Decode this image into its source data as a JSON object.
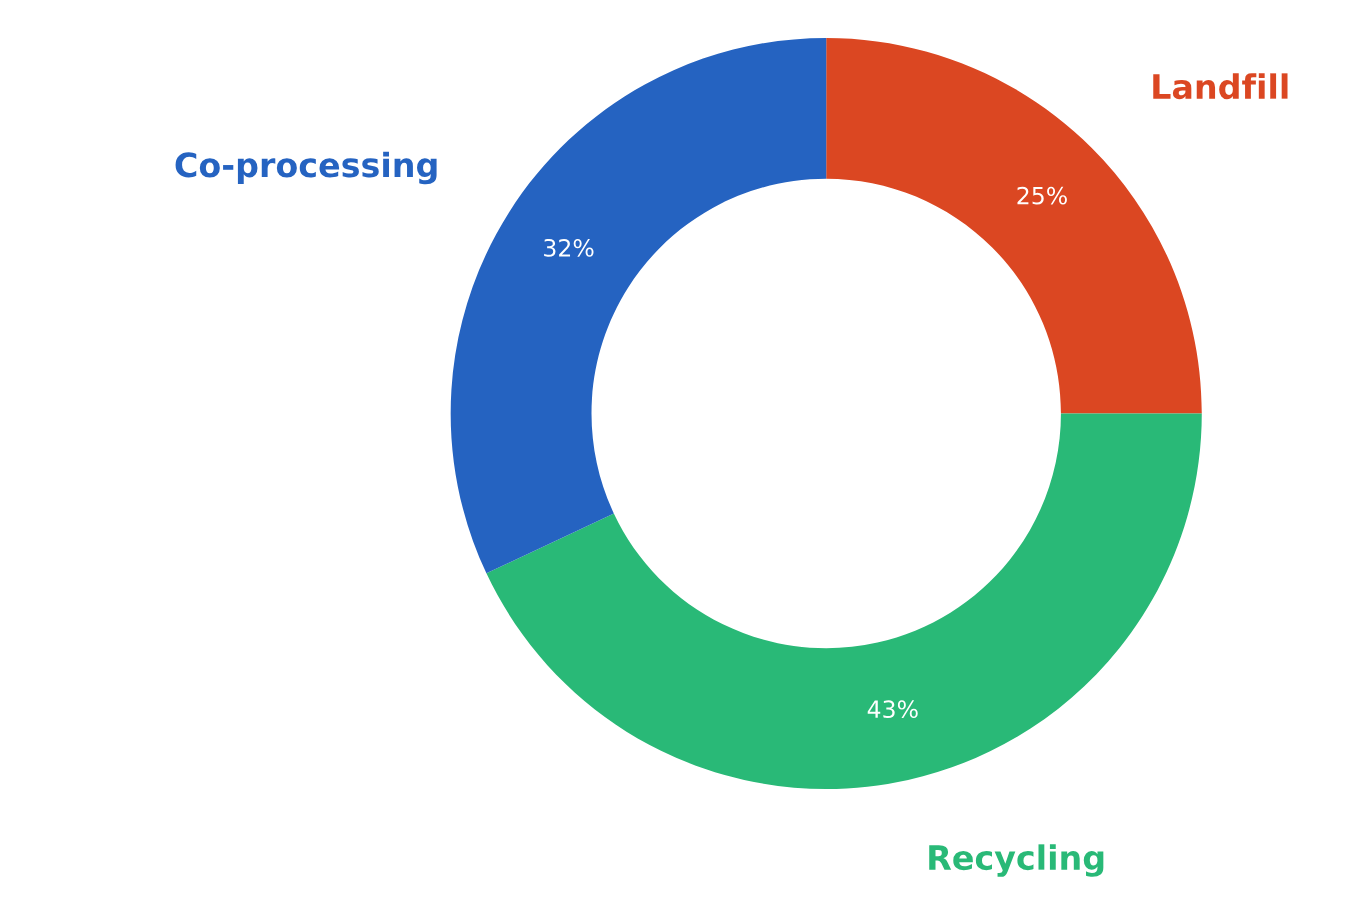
{
  "chart_data": {
    "type": "donut",
    "categories": [
      "Landfill",
      "Recycling",
      "Co-processing"
    ],
    "values": [
      25,
      43,
      32
    ],
    "colors": [
      "#db4722",
      "#29b977",
      "#2563c1"
    ],
    "value_labels": [
      "25%",
      "43%",
      "32%"
    ]
  }
}
